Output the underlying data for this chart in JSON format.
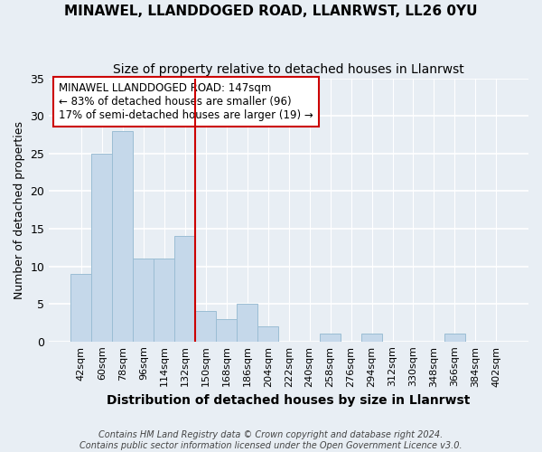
{
  "title": "MINAWEL, LLANDDOGED ROAD, LLANRWST, LL26 0YU",
  "subtitle": "Size of property relative to detached houses in Llanrwst",
  "xlabel": "Distribution of detached houses by size in Llanrwst",
  "ylabel": "Number of detached properties",
  "categories": [
    "42sqm",
    "60sqm",
    "78sqm",
    "96sqm",
    "114sqm",
    "132sqm",
    "150sqm",
    "168sqm",
    "186sqm",
    "204sqm",
    "222sqm",
    "240sqm",
    "258sqm",
    "276sqm",
    "294sqm",
    "312sqm",
    "330sqm",
    "348sqm",
    "366sqm",
    "384sqm",
    "402sqm"
  ],
  "values": [
    9,
    25,
    28,
    11,
    11,
    14,
    4,
    3,
    5,
    2,
    0,
    0,
    1,
    0,
    1,
    0,
    0,
    0,
    1,
    0,
    0
  ],
  "bar_color": "#c5d8ea",
  "bar_edge_color": "#9bbdd4",
  "vline_index": 6,
  "vline_color": "#cc0000",
  "annotation_text": "MINAWEL LLANDDOGED ROAD: 147sqm\n← 83% of detached houses are smaller (96)\n17% of semi-detached houses are larger (19) →",
  "annotation_box_facecolor": "#ffffff",
  "annotation_box_edgecolor": "#cc0000",
  "ylim": [
    0,
    35
  ],
  "yticks": [
    0,
    5,
    10,
    15,
    20,
    25,
    30,
    35
  ],
  "footer_line1": "Contains HM Land Registry data © Crown copyright and database right 2024.",
  "footer_line2": "Contains public sector information licensed under the Open Government Licence v3.0.",
  "fig_facecolor": "#e8eef4",
  "axes_facecolor": "#e8eef4",
  "grid_color": "#ffffff",
  "title_fontsize": 11,
  "subtitle_fontsize": 10,
  "xlabel_fontsize": 10,
  "ylabel_fontsize": 9,
  "xtick_fontsize": 8,
  "ytick_fontsize": 9,
  "annotation_fontsize": 8.5,
  "footer_fontsize": 7
}
